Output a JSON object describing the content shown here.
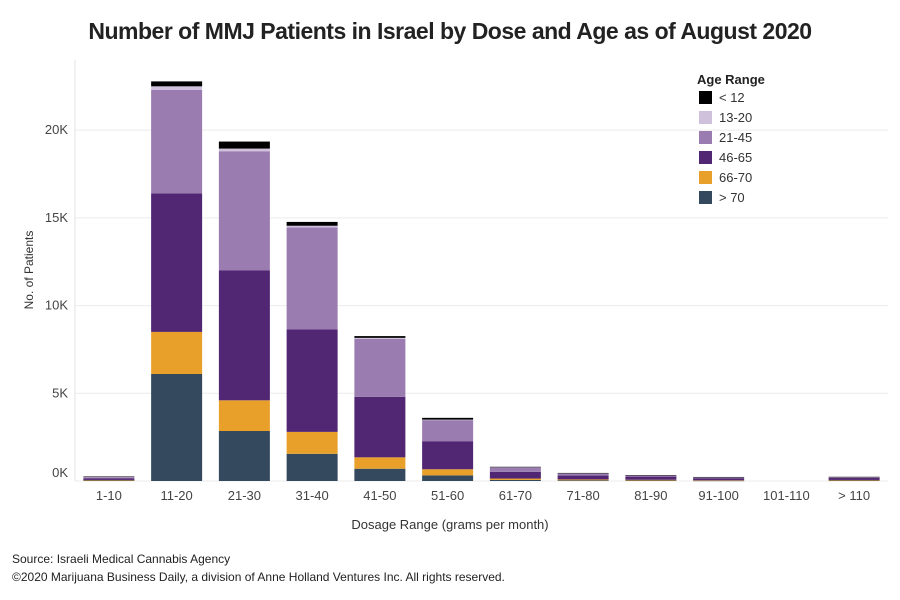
{
  "chart_data": {
    "type": "bar",
    "stacked": true,
    "title": "Number of MMJ Patients in Israel by Dose and Age as of August 2020",
    "xlabel": "Dosage Range (grams per month)",
    "ylabel": "No. of Patients",
    "ylim": [
      0,
      24000
    ],
    "yticks": [
      0,
      5000,
      10000,
      15000,
      20000
    ],
    "ytick_labels": [
      "0K",
      "5K",
      "10K",
      "15K",
      "20K"
    ],
    "grid": true,
    "legend": {
      "title": "Age Range",
      "placement": "top-right"
    },
    "categories": [
      "1-10",
      "11-20",
      "21-30",
      "31-40",
      "41-50",
      "51-60",
      "61-70",
      "71-80",
      "81-90",
      "91-100",
      "101-110",
      "> 110"
    ],
    "series": [
      {
        "name": "> 70",
        "color": "#34495e",
        "values": [
          40,
          6100,
          2850,
          1550,
          700,
          320,
          60,
          40,
          30,
          20,
          0,
          30
        ]
      },
      {
        "name": "66-70",
        "color": "#e8a02a",
        "values": [
          20,
          2400,
          1750,
          1250,
          650,
          350,
          80,
          50,
          40,
          20,
          0,
          30
        ]
      },
      {
        "name": "46-65",
        "color": "#512673",
        "values": [
          100,
          7900,
          7400,
          5850,
          3450,
          1600,
          380,
          220,
          180,
          120,
          0,
          110
        ]
      },
      {
        "name": "21-45",
        "color": "#9b7cb0",
        "values": [
          70,
          5900,
          6800,
          5800,
          3300,
          1200,
          260,
          130,
          70,
          50,
          0,
          50
        ]
      },
      {
        "name": "13-20",
        "color": "#cfc0dc",
        "values": [
          10,
          200,
          150,
          100,
          60,
          30,
          10,
          5,
          5,
          5,
          0,
          5
        ]
      },
      {
        "name": "< 12",
        "color": "#000000",
        "values": [
          20,
          280,
          400,
          220,
          100,
          100,
          20,
          15,
          15,
          15,
          0,
          15
        ]
      }
    ]
  },
  "footer": {
    "source": "Source: Israeli Medical Cannabis Agency",
    "copyright": "©2020 Marijuana Business Daily, a division of Anne Holland Ventures Inc. All rights reserved."
  }
}
